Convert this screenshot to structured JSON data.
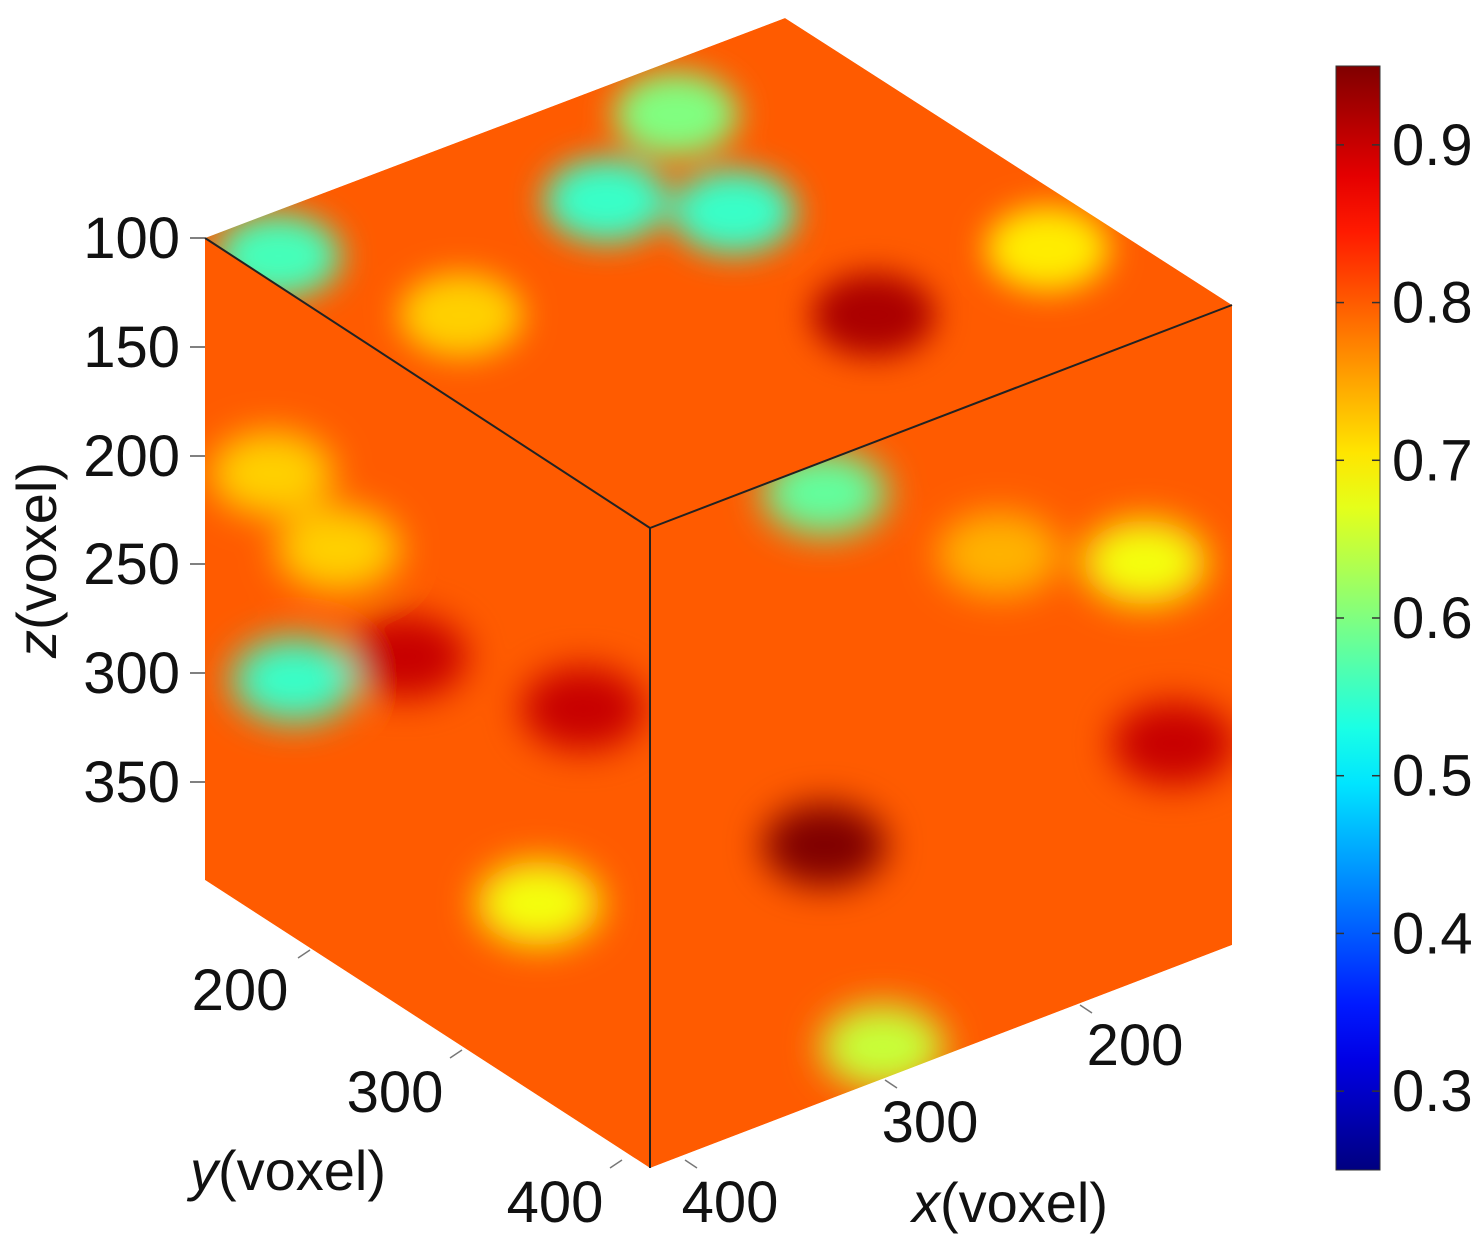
{
  "chart_data": {
    "type": "heatmap",
    "variant": "3d-volume-cube",
    "colormap": "jet",
    "zlabel_var": "z",
    "zlabel_unit": "(voxel)",
    "ylabel_var": "y",
    "ylabel_unit": "(voxel)",
    "xlabel_var": "x",
    "xlabel_unit": "(voxel)",
    "z_ticks": [
      {
        "label": "100"
      },
      {
        "label": "150"
      },
      {
        "label": "200"
      },
      {
        "label": "250"
      },
      {
        "label": "300"
      },
      {
        "label": "350"
      }
    ],
    "y_ticks": [
      {
        "label": "200"
      },
      {
        "label": "300"
      },
      {
        "label": "400"
      }
    ],
    "x_ticks": [
      {
        "label": "200"
      },
      {
        "label": "300"
      },
      {
        "label": "400"
      }
    ],
    "colorbar": {
      "range": [
        0.25,
        0.95
      ],
      "ticks": [
        {
          "label": "0.9",
          "value": 0.9
        },
        {
          "label": "0.8",
          "value": 0.8
        },
        {
          "label": "0.7",
          "value": 0.7
        },
        {
          "label": "0.6",
          "value": 0.6
        },
        {
          "label": "0.5",
          "value": 0.5
        },
        {
          "label": "0.4",
          "value": 0.4
        },
        {
          "label": "0.3",
          "value": 0.3
        }
      ]
    },
    "face_features": {
      "background_value": 0.8,
      "top": [
        {
          "u": 0.05,
          "v": 0.1,
          "value": 0.56
        },
        {
          "u": 0.15,
          "v": 0.38,
          "value": 0.72
        },
        {
          "u": 0.5,
          "v": 0.25,
          "value": 0.55
        },
        {
          "u": 0.62,
          "v": 0.38,
          "value": 0.55
        },
        {
          "u": 0.72,
          "v": 0.12,
          "value": 0.6
        },
        {
          "u": 0.9,
          "v": 0.72,
          "value": 0.7
        },
        {
          "u": 0.6,
          "v": 0.72,
          "value": 0.92
        }
      ],
      "front": [
        {
          "u": 0.15,
          "v": 0.3,
          "value": 0.72
        },
        {
          "u": 0.3,
          "v": 0.35,
          "value": 0.72
        },
        {
          "u": 0.45,
          "v": 0.45,
          "value": 0.9
        },
        {
          "u": 0.2,
          "v": 0.6,
          "value": 0.55
        },
        {
          "u": 0.75,
          "v": 0.7,
          "value": 0.68
        },
        {
          "u": 0.85,
          "v": 0.35,
          "value": 0.9
        }
      ],
      "right": [
        {
          "u": 0.3,
          "v": 0.05,
          "value": 0.58
        },
        {
          "u": 0.85,
          "v": 0.35,
          "value": 0.68
        },
        {
          "u": 0.3,
          "v": 0.6,
          "value": 0.95
        },
        {
          "u": 0.9,
          "v": 0.65,
          "value": 0.9
        },
        {
          "u": 0.4,
          "v": 0.95,
          "value": 0.65
        },
        {
          "u": 0.6,
          "v": 0.25,
          "value": 0.74
        }
      ]
    }
  }
}
